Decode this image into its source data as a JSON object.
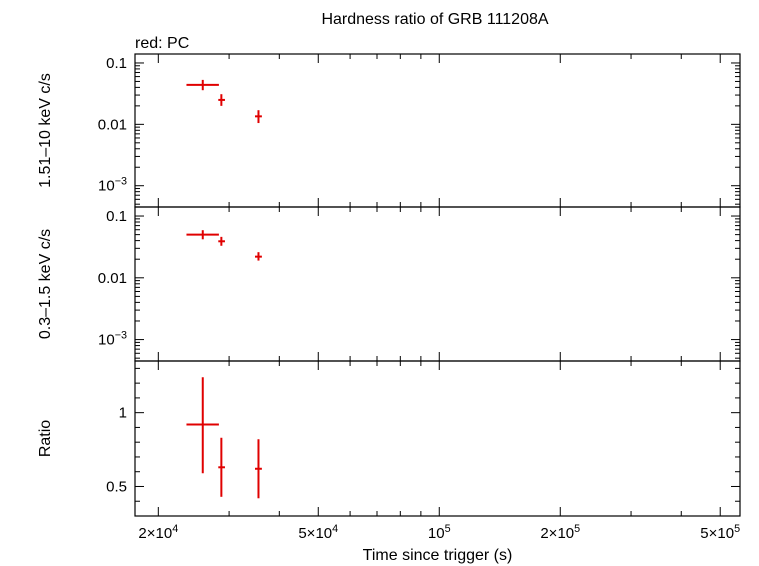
{
  "title": "Hardness ratio of GRB 111208A",
  "legend_label": "red: PC",
  "colors": {
    "series": "#e00000",
    "axes": "#000000"
  },
  "chart_data": [
    {
      "panel": "top",
      "type": "scatter",
      "ylabel": "1.51–10 keV c/s",
      "xscale": "log",
      "yscale": "log",
      "xlim": [
        17500,
        560000
      ],
      "ylim": [
        0.00045,
        0.14
      ],
      "yticks": [
        {
          "value": 0.1,
          "base": "0.1",
          "exp": ""
        },
        {
          "value": 0.01,
          "base": "0.01",
          "exp": ""
        },
        {
          "value": 0.001,
          "base": "10",
          "exp": "−3"
        }
      ],
      "points": [
        {
          "x": 25800,
          "x_lo": 23500,
          "x_hi": 28300,
          "y": 0.044,
          "y_lo": 0.036,
          "y_hi": 0.053
        },
        {
          "x": 28700,
          "x_lo": 28200,
          "x_hi": 29300,
          "y": 0.025,
          "y_lo": 0.02,
          "y_hi": 0.031
        },
        {
          "x": 35500,
          "x_lo": 34800,
          "x_hi": 36200,
          "y": 0.0135,
          "y_lo": 0.0105,
          "y_hi": 0.017
        }
      ]
    },
    {
      "panel": "middle",
      "type": "scatter",
      "ylabel": "0.3–1.5 keV c/s",
      "xscale": "log",
      "yscale": "log",
      "xlim": [
        17500,
        560000
      ],
      "ylim": [
        0.00045,
        0.14
      ],
      "yticks": [
        {
          "value": 0.1,
          "base": "0.1",
          "exp": ""
        },
        {
          "value": 0.01,
          "base": "0.01",
          "exp": ""
        },
        {
          "value": 0.001,
          "base": "10",
          "exp": "−3"
        }
      ],
      "points": [
        {
          "x": 25800,
          "x_lo": 23500,
          "x_hi": 28300,
          "y": 0.05,
          "y_lo": 0.042,
          "y_hi": 0.059
        },
        {
          "x": 28700,
          "x_lo": 28200,
          "x_hi": 29300,
          "y": 0.039,
          "y_lo": 0.033,
          "y_hi": 0.046
        },
        {
          "x": 35500,
          "x_lo": 34800,
          "x_hi": 36200,
          "y": 0.022,
          "y_lo": 0.019,
          "y_hi": 0.026
        }
      ]
    },
    {
      "panel": "bottom",
      "type": "scatter",
      "ylabel": "Ratio",
      "xlabel": "Time since trigger (s)",
      "xscale": "log",
      "yscale": "linear",
      "xlim": [
        17500,
        560000
      ],
      "ylim": [
        0.3,
        1.35
      ],
      "yticks": [
        {
          "value": 1,
          "base": "1",
          "exp": ""
        },
        {
          "value": 0.5,
          "base": "0.5",
          "exp": ""
        }
      ],
      "xticks": [
        {
          "value": 20000,
          "base": "2×10",
          "exp": "4"
        },
        {
          "value": 50000,
          "base": "5×10",
          "exp": "4"
        },
        {
          "value": 100000,
          "base": "10",
          "exp": "5"
        },
        {
          "value": 200000,
          "base": "2×10",
          "exp": "5"
        },
        {
          "value": 500000,
          "base": "5×10",
          "exp": "5"
        }
      ],
      "points": [
        {
          "x": 25800,
          "x_lo": 23500,
          "x_hi": 28300,
          "y": 0.92,
          "y_lo": 0.59,
          "y_hi": 1.24
        },
        {
          "x": 28700,
          "x_lo": 28200,
          "x_hi": 29300,
          "y": 0.63,
          "y_lo": 0.43,
          "y_hi": 0.83
        },
        {
          "x": 35500,
          "x_lo": 34800,
          "x_hi": 36200,
          "y": 0.62,
          "y_lo": 0.42,
          "y_hi": 0.82
        }
      ]
    }
  ]
}
